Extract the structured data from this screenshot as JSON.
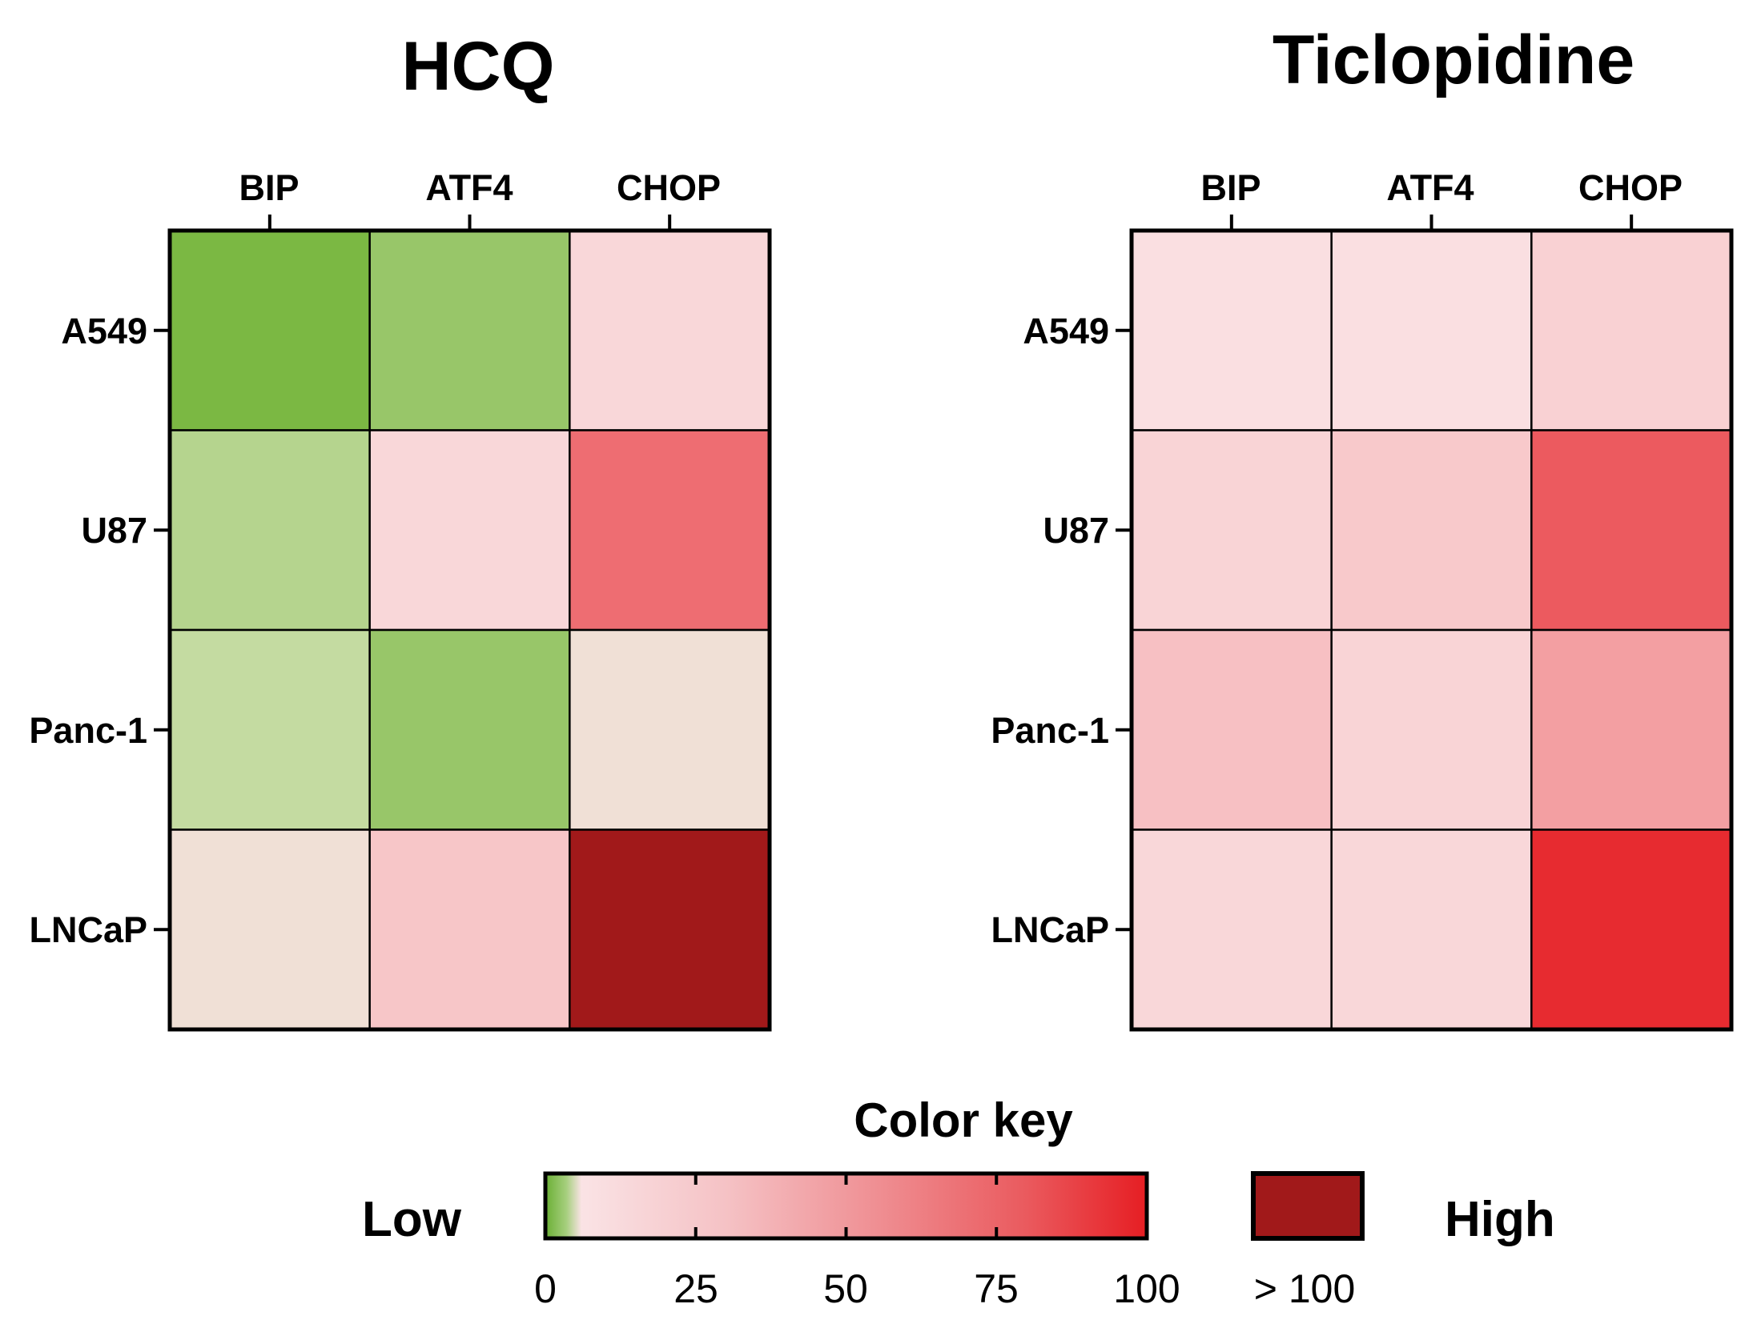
{
  "chart_data": [
    {
      "type": "heatmap",
      "title": "HCQ",
      "columns": [
        "BIP",
        "ATF4",
        "CHOP"
      ],
      "rows": [
        "A549",
        "U87",
        "Panc-1",
        "LNCaP"
      ],
      "values": [
        [
          0,
          2,
          13
        ],
        [
          4,
          13,
          51
        ],
        [
          5,
          2,
          9
        ],
        [
          9,
          19,
          120
        ]
      ]
    },
    {
      "type": "heatmap",
      "title": "Ticlopidine",
      "columns": [
        "BIP",
        "ATF4",
        "CHOP"
      ],
      "rows": [
        "A549",
        "U87",
        "Panc-1",
        "LNCaP"
      ],
      "values": [
        [
          10,
          10,
          15
        ],
        [
          14,
          18,
          63
        ],
        [
          21,
          14,
          33
        ],
        [
          13,
          13,
          92
        ]
      ]
    }
  ],
  "color_key": {
    "title": "Color key",
    "low_label": "Low",
    "high_label": "High",
    "range": [
      0,
      100
    ],
    "ticks": [
      0,
      25,
      50,
      75,
      100
    ],
    "tick_labels": [
      "0",
      "25",
      "50",
      "75",
      "100"
    ],
    "overflow_label": "> 100",
    "colors": {
      "low_green": "#7bb843",
      "light_green": "#d2e2b4",
      "pale_pink": "#fadfe1",
      "mid_red": "#ee6f74",
      "high_red": "#e61e23",
      "overflow": "#a1191a"
    }
  }
}
